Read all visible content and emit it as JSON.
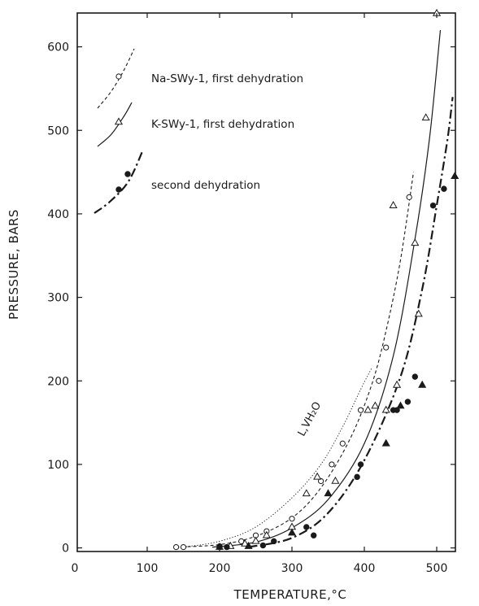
{
  "chart_data": {
    "type": "scatter",
    "xlabel": "TEMPERATURE,°C",
    "ylabel": "PRESSURE, BARS",
    "xlim": [
      0,
      560
    ],
    "ylim": [
      0,
      650
    ],
    "x_ticks": [
      0,
      100,
      200,
      300,
      400,
      500
    ],
    "y_ticks": [
      0,
      100,
      200,
      300,
      400,
      500,
      600
    ],
    "grid": false,
    "legend_position": "top-left",
    "annotation": {
      "text": "L,VH₂O",
      "x": 400,
      "y": 140
    },
    "series": [
      {
        "name": "Na-SWy-1, first dehydration",
        "marker": "open-circle",
        "line": "dashed",
        "points": [
          [
            140,
            1
          ],
          [
            150,
            1
          ],
          [
            200,
            2
          ],
          [
            230,
            8
          ],
          [
            250,
            15
          ],
          [
            265,
            20
          ],
          [
            300,
            35
          ],
          [
            340,
            80
          ],
          [
            355,
            100
          ],
          [
            370,
            125
          ],
          [
            395,
            165
          ],
          [
            420,
            200
          ],
          [
            430,
            240
          ],
          [
            462,
            420
          ]
        ],
        "curve": [
          [
            140,
            1
          ],
          [
            200,
            4
          ],
          [
            250,
            14
          ],
          [
            300,
            36
          ],
          [
            340,
            72
          ],
          [
            380,
            130
          ],
          [
            410,
            195
          ],
          [
            430,
            260
          ],
          [
            450,
            345
          ],
          [
            468,
            450
          ]
        ]
      },
      {
        "name": "K-SWy-1, first dehydration",
        "marker": "open-triangle",
        "line": "solid",
        "points": [
          [
            200,
            1
          ],
          [
            215,
            2
          ],
          [
            235,
            5
          ],
          [
            250,
            8
          ],
          [
            265,
            15
          ],
          [
            300,
            25
          ],
          [
            320,
            65
          ],
          [
            335,
            85
          ],
          [
            360,
            80
          ],
          [
            405,
            165
          ],
          [
            415,
            170
          ],
          [
            430,
            165
          ],
          [
            440,
            410
          ],
          [
            445,
            195
          ],
          [
            470,
            365
          ],
          [
            475,
            280
          ],
          [
            485,
            515
          ],
          [
            500,
            640
          ]
        ],
        "curve": [
          [
            190,
            1
          ],
          [
            250,
            7
          ],
          [
            300,
            24
          ],
          [
            350,
            58
          ],
          [
            400,
            125
          ],
          [
            440,
            230
          ],
          [
            470,
            370
          ],
          [
            490,
            490
          ],
          [
            505,
            620
          ]
        ]
      },
      {
        "name": "second dehydration",
        "marker": "filled-circle / filled-triangle",
        "line": "dash-dot",
        "points": [
          [
            200,
            1
          ],
          [
            210,
            1
          ],
          [
            240,
            2
          ],
          [
            260,
            3
          ],
          [
            275,
            8
          ],
          [
            300,
            18
          ],
          [
            320,
            25
          ],
          [
            330,
            15
          ],
          [
            350,
            65
          ],
          [
            390,
            85
          ],
          [
            395,
            100
          ],
          [
            430,
            125
          ],
          [
            440,
            165
          ],
          [
            445,
            165
          ],
          [
            450,
            170
          ],
          [
            460,
            175
          ],
          [
            470,
            205
          ],
          [
            480,
            195
          ],
          [
            495,
            410
          ],
          [
            510,
            430
          ],
          [
            525,
            445
          ]
        ],
        "curve": [
          [
            240,
            1
          ],
          [
            300,
            12
          ],
          [
            350,
            42
          ],
          [
            400,
            105
          ],
          [
            450,
            205
          ],
          [
            480,
            310
          ],
          [
            500,
            410
          ],
          [
            515,
            490
          ],
          [
            522,
            540
          ]
        ]
      },
      {
        "name": "L,VH₂O",
        "marker": "none",
        "line": "dotted",
        "points": [],
        "curve": [
          [
            150,
            1
          ],
          [
            200,
            8
          ],
          [
            250,
            25
          ],
          [
            300,
            60
          ],
          [
            340,
            100
          ],
          [
            370,
            145
          ],
          [
            395,
            190
          ],
          [
            410,
            215
          ]
        ]
      }
    ]
  }
}
